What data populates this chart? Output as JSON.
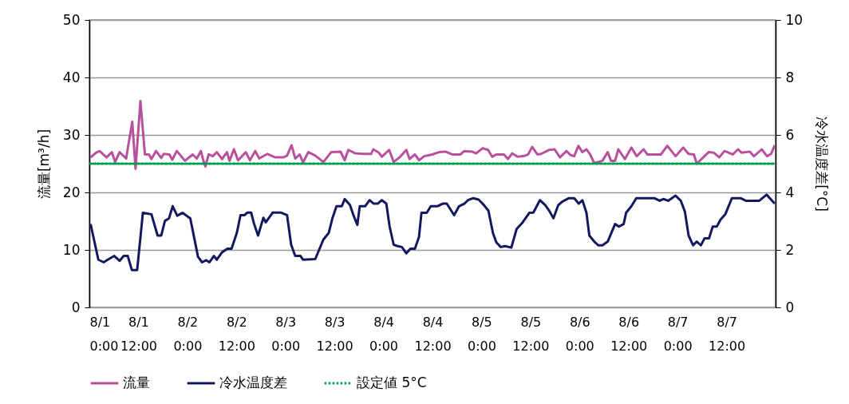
{
  "chart_data": {
    "type": "line",
    "ylabel": "流量[m³/h]",
    "y2label": "冷水温度差[°C]",
    "grid": "y",
    "legend": "bottom",
    "xlim": [
      "--08-01T00:00",
      "--08-08T00:00"
    ],
    "xticks": [
      {
        "value": "--08-01T00:00",
        "label": "8/1 0:00"
      },
      {
        "value": "--08-01T12:00",
        "label": "8/1 12:00"
      },
      {
        "value": "--08-02T00:00",
        "label": "8/2 0:00"
      },
      {
        "value": "--08-02T12:00",
        "label": "8/2 12:00"
      },
      {
        "value": "--08-03T00:00",
        "label": "8/3 0:00"
      },
      {
        "value": "--08-03T12:00",
        "label": "8/3 12:00"
      },
      {
        "value": "--08-04T00:00",
        "label": "8/4 0:00"
      },
      {
        "value": "--08-04T12:00",
        "label": "8/4 12:00"
      },
      {
        "value": "--08-05T00:00",
        "label": "8/5 0:00"
      },
      {
        "value": "--08-05T12:00",
        "label": "8/5 12:00"
      },
      {
        "value": "--08-06T00:00",
        "label": "8/6 0:00"
      },
      {
        "value": "--08-06T12:00",
        "label": "8/6 12:00"
      },
      {
        "value": "--08-07T00:00",
        "label": "8/7 0:00"
      },
      {
        "value": "--08-07T12:00",
        "label": "8/7 12:00"
      }
    ],
    "ylim": [
      0,
      50
    ],
    "yticks": [
      0,
      10,
      20,
      30,
      40,
      50
    ],
    "y2lim": [
      0,
      10
    ],
    "y2ticks": [
      0,
      2,
      4,
      6,
      8,
      10
    ],
    "series": [
      {
        "name": "流量",
        "color": "#b8509e",
        "axis": "y",
        "line_style": "solid",
        "x": [
          "--08-01T00:18",
          "--08-01T01:36",
          "--08-01T02:30",
          "--08-01T04:12",
          "--08-01T05:30",
          "--08-01T06:18",
          "--08-01T07:24",
          "--08-01T09:00",
          "--08-01T10:30",
          "--08-01T11:18",
          "--08-01T12:30",
          "--08-01T13:36",
          "--08-01T14:36",
          "--08-01T15:12",
          "--08-01T16:18",
          "--08-01T17:36",
          "--08-01T18:12",
          "--08-01T19:36",
          "--08-01T20:18",
          "--08-01T21:24",
          "--08-01T23:24",
          "--08-02T01:18",
          "--08-02T02:18",
          "--08-02T03:18",
          "--08-02T03:48",
          "--08-02T04:24",
          "--08-02T05:12",
          "--08-02T06:12",
          "--08-02T07:12",
          "--08-02T08:30",
          "--08-02T09:42",
          "--08-02T10:18",
          "--08-02T11:24",
          "--08-02T12:24",
          "--08-02T14:18",
          "--08-02T15:18",
          "--08-02T16:36",
          "--08-02T17:36",
          "--08-02T19:36",
          "--08-02T21:30",
          "--08-02T23:30",
          "--08-03T00:24",
          "--08-03T01:30",
          "--08-03T02:24",
          "--08-03T03:30",
          "--08-03T04:18",
          "--08-03T05:36",
          "--08-03T07:18",
          "--08-03T09:18",
          "--08-03T11:12",
          "--08-03T13:30",
          "--08-03T14:30",
          "--08-03T15:24",
          "--08-03T17:06",
          "--08-03T19:00",
          "--08-03T21:00",
          "--08-03T21:30",
          "--08-03T22:54",
          "--08-03T23:36",
          "--08-04T01:24",
          "--08-04T02:30",
          "--08-04T04:06",
          "--08-04T05:36",
          "--08-04T06:24",
          "--08-04T07:42",
          "--08-04T08:42",
          "--08-04T10:00",
          "--08-04T11:54",
          "--08-04T13:36",
          "--08-04T15:12",
          "--08-04T16:48",
          "--08-04T18:48",
          "--08-04T19:48",
          "--08-04T21:42",
          "--08-04T22:42",
          "--08-05T00:18",
          "--08-05T01:36",
          "--08-05T02:36",
          "--08-05T03:36",
          "--08-05T05:30",
          "--08-05T06:30",
          "--08-05T07:30",
          "--08-05T08:48",
          "--08-05T10:42",
          "--08-05T11:24",
          "--08-05T12:24",
          "--08-05T13:42",
          "--08-05T14:36",
          "--08-05T16:36",
          "--08-05T17:54",
          "--08-05T19:12",
          "--08-05T20:48",
          "--08-05T21:48",
          "--08-05T22:42",
          "--08-05T23:42",
          "--08-06T00:42",
          "--08-06T01:42",
          "--08-06T02:36",
          "--08-06T03:36",
          "--08-06T05:36",
          "--08-06T06:54",
          "--08-06T07:42",
          "--08-06T08:42",
          "--08-06T09:30",
          "--08-06T11:06",
          "--08-06T12:42",
          "--08-06T14:00",
          "--08-06T15:42",
          "--08-06T16:36",
          "--08-06T19:54",
          "--08-06T21:30",
          "--08-06T23:30",
          "--08-07T01:24",
          "--08-07T02:42",
          "--08-07T04:00",
          "--08-07T04:42",
          "--08-07T07:36",
          "--08-07T08:54",
          "--08-07T10:12",
          "--08-07T11:30",
          "--08-07T13:30",
          "--08-07T14:48",
          "--08-07T15:42",
          "--08-07T17:42",
          "--08-07T18:42",
          "--08-07T20:36",
          "--08-07T21:54",
          "--08-07T22:54",
          "--08-07T23:48"
        ],
        "values": [
          26.1,
          26.9,
          27.2,
          26.1,
          27.0,
          25.3,
          27.0,
          25.9,
          32.3,
          24.1,
          35.9,
          26.6,
          26.6,
          25.8,
          27.2,
          26.0,
          26.7,
          26.6,
          25.7,
          27.2,
          25.5,
          26.6,
          25.9,
          27.2,
          25.8,
          24.5,
          26.6,
          26.3,
          27.0,
          25.8,
          27.0,
          25.5,
          27.5,
          25.6,
          27.0,
          25.6,
          27.2,
          25.9,
          26.7,
          26.1,
          26.1,
          26.4,
          28.2,
          25.9,
          26.6,
          25.2,
          27.0,
          26.4,
          25.3,
          27.0,
          27.1,
          25.6,
          27.4,
          26.8,
          26.7,
          26.7,
          27.5,
          26.9,
          26.2,
          27.4,
          25.3,
          26.2,
          27.4,
          25.8,
          26.6,
          25.6,
          26.3,
          26.6,
          27.0,
          27.1,
          26.6,
          26.6,
          27.2,
          27.1,
          26.8,
          27.7,
          27.4,
          26.2,
          26.6,
          26.6,
          25.8,
          26.8,
          26.2,
          26.4,
          26.6,
          27.9,
          26.6,
          26.7,
          27.4,
          27.5,
          26.1,
          27.2,
          26.5,
          26.3,
          28.1,
          27.0,
          27.5,
          26.6,
          25.1,
          25.5,
          27.0,
          25.5,
          25.5,
          27.5,
          25.8,
          27.8,
          26.3,
          27.5,
          26.6,
          26.6,
          28.1,
          26.3,
          27.8,
          26.7,
          26.6,
          25.0,
          27.0,
          26.9,
          26.1,
          27.2,
          26.6,
          27.5,
          26.9,
          27.1,
          26.3,
          27.5,
          26.3,
          26.7,
          28.2
        ]
      },
      {
        "name": "冷水温度差",
        "color": "#12195e",
        "axis": "y2",
        "line_style": "solid",
        "x": [
          "--08-01T00:18",
          "--08-01T02:12",
          "--08-01T03:30",
          "--08-01T04:30",
          "--08-01T06:06",
          "--08-01T07:24",
          "--08-01T08:24",
          "--08-01T09:24",
          "--08-01T10:24",
          "--08-01T11:42",
          "--08-01T13:06",
          "--08-01T15:12",
          "--08-01T16:42",
          "--08-01T17:36",
          "--08-01T18:30",
          "--08-01T19:30",
          "--08-01T20:24",
          "--08-01T21:30",
          "--08-01T22:48",
          "--08-02T00:42",
          "--08-02T02:36",
          "--08-02T03:36",
          "--08-02T04:36",
          "--08-02T05:24",
          "--08-02T06:30",
          "--08-02T07:12",
          "--08-02T08:30",
          "--08-02T09:48",
          "--08-02T10:48",
          "--08-02T12:06",
          "--08-02T13:00",
          "--08-02T14:00",
          "--08-02T14:42",
          "--08-02T15:36",
          "--08-02T16:18",
          "--08-02T17:18",
          "--08-02T18:36",
          "--08-02T19:12",
          "--08-02T20:54",
          "--08-02T22:48",
          "--08-03T00:24",
          "--08-03T01:24",
          "--08-03T02:24",
          "--08-03T03:42",
          "--08-03T04:18",
          "--08-03T07:18",
          "--08-03T09:18",
          "--08-03T10:36",
          "--08-03T11:30",
          "--08-03T12:30",
          "--08-03T13:48",
          "--08-03T14:30",
          "--08-03T15:48",
          "--08-03T16:42",
          "--08-03T17:36",
          "--08-03T18:12",
          "--08-03T19:30",
          "--08-03T20:36",
          "--08-03T21:36",
          "--08-03T22:36",
          "--08-03T23:36",
          "--08-04T00:42",
          "--08-04T01:30",
          "--08-04T02:30",
          "--08-04T03:30",
          "--08-04T04:30",
          "--08-04T05:36",
          "--08-04T06:36",
          "--08-04T07:42",
          "--08-04T08:42",
          "--08-04T09:18",
          "--08-04T10:36",
          "--08-04T11:36",
          "--08-04T13:12",
          "--08-04T14:30",
          "--08-04T15:30",
          "--08-04T17:18",
          "--08-04T18:30",
          "--08-04T19:48",
          "--08-04T20:42",
          "--08-04T22:00",
          "--08-04T23:18",
          "--08-05T00:36",
          "--08-05T01:42",
          "--08-05T02:48",
          "--08-05T03:36",
          "--08-05T04:42",
          "--08-05T05:48",
          "--08-05T07:18",
          "--08-05T08:36",
          "--08-05T10:06",
          "--08-05T11:42",
          "--08-05T12:42",
          "--08-05T14:18",
          "--08-05T15:36",
          "--08-05T16:36",
          "--08-05T17:36",
          "--08-05T18:48",
          "--08-05T19:48",
          "--08-05T21:24",
          "--08-05T22:42",
          "--08-05T23:48",
          "--08-06T00:42",
          "--08-06T01:42",
          "--08-06T02:24",
          "--08-06T03:36",
          "--08-06T04:36",
          "--08-06T05:36",
          "--08-06T06:54",
          "--08-06T08:42",
          "--08-06T09:36",
          "--08-06T10:48",
          "--08-06T11:24",
          "--08-06T12:42",
          "--08-06T13:54",
          "--08-06T18:18",
          "--08-06T19:36",
          "--08-06T20:30",
          "--08-06T21:42",
          "--08-06T23:30",
          "--08-07T00:48",
          "--08-07T01:48",
          "--08-07T02:42",
          "--08-07T03:48",
          "--08-07T04:42",
          "--08-07T05:42",
          "--08-07T06:36",
          "--08-07T07:42",
          "--08-07T08:36",
          "--08-07T09:36",
          "--08-07T10:30",
          "--08-07T11:42",
          "--08-07T13:18",
          "--08-07T15:24",
          "--08-07T16:42",
          "--08-07T20:00",
          "--08-07T21:48",
          "--08-07T23:48"
        ],
        "values": [
          2.9,
          1.66,
          1.57,
          1.66,
          1.79,
          1.62,
          1.79,
          1.79,
          1.3,
          1.3,
          3.29,
          3.24,
          2.5,
          2.5,
          3.01,
          3.1,
          3.52,
          3.19,
          3.29,
          3.1,
          1.76,
          1.57,
          1.64,
          1.57,
          1.79,
          1.66,
          1.92,
          2.04,
          2.04,
          2.59,
          3.21,
          3.21,
          3.3,
          3.3,
          2.92,
          2.5,
          3.12,
          2.96,
          3.3,
          3.3,
          3.21,
          2.18,
          1.79,
          1.79,
          1.66,
          1.68,
          2.36,
          2.59,
          3.1,
          3.52,
          3.52,
          3.77,
          3.56,
          3.19,
          2.87,
          3.52,
          3.52,
          3.73,
          3.61,
          3.61,
          3.73,
          3.61,
          2.82,
          2.18,
          2.13,
          2.1,
          1.88,
          2.04,
          2.04,
          2.45,
          3.29,
          3.29,
          3.52,
          3.52,
          3.61,
          3.61,
          3.21,
          3.52,
          3.61,
          3.73,
          3.8,
          3.75,
          3.56,
          3.36,
          2.59,
          2.27,
          2.1,
          2.13,
          2.08,
          2.73,
          2.96,
          3.29,
          3.3,
          3.73,
          3.56,
          3.36,
          3.1,
          3.56,
          3.68,
          3.8,
          3.8,
          3.61,
          3.73,
          3.29,
          2.5,
          2.29,
          2.16,
          2.16,
          2.29,
          2.9,
          2.81,
          2.9,
          3.29,
          3.52,
          3.8,
          3.8,
          3.71,
          3.77,
          3.71,
          3.89,
          3.71,
          3.33,
          2.5,
          2.16,
          2.29,
          2.16,
          2.4,
          2.4,
          2.81,
          2.81,
          3.05,
          3.24,
          3.8,
          3.8,
          3.71,
          3.71,
          3.92,
          3.61
        ]
      },
      {
        "name": "設定値 5°C",
        "color": "#00a050",
        "axis": "y2",
        "line_style": "dotted",
        "x": [
          "--08-01T00:00",
          "--08-07T23:30"
        ],
        "values": [
          5,
          5
        ]
      }
    ]
  }
}
